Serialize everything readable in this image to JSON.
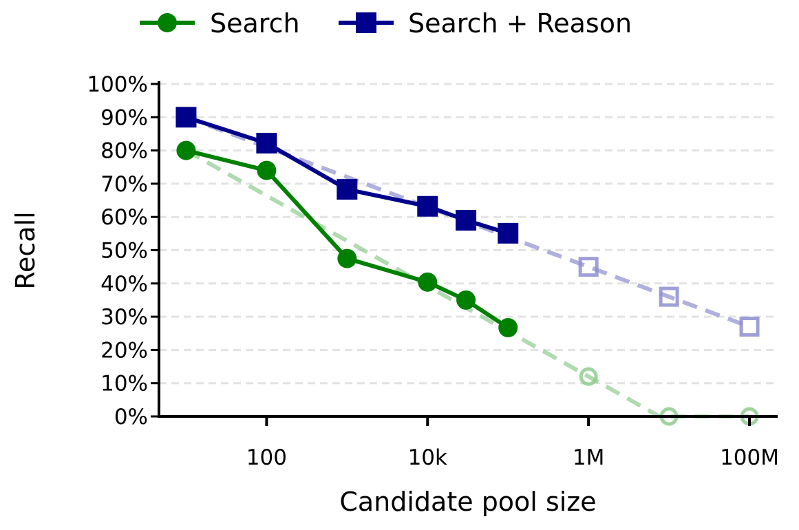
{
  "chart_data": {
    "type": "line",
    "title": "",
    "xlabel": "Candidate pool size",
    "ylabel": "Recall",
    "x_scale": "log",
    "xlim": [
      4.6,
      224000000
    ],
    "ylim": [
      0,
      100
    ],
    "x_ticks": [
      {
        "value": 100,
        "label": "100"
      },
      {
        "value": 10000,
        "label": "10k"
      },
      {
        "value": 1000000,
        "label": "1M"
      },
      {
        "value": 100000000,
        "label": "100M"
      }
    ],
    "y_ticks": [
      {
        "value": 0,
        "label": "0%"
      },
      {
        "value": 10,
        "label": "10%"
      },
      {
        "value": 20,
        "label": "20%"
      },
      {
        "value": 30,
        "label": "30%"
      },
      {
        "value": 40,
        "label": "40%"
      },
      {
        "value": 50,
        "label": "50%"
      },
      {
        "value": 60,
        "label": "60%"
      },
      {
        "value": 70,
        "label": "70%"
      },
      {
        "value": 80,
        "label": "80%"
      },
      {
        "value": 90,
        "label": "90%"
      },
      {
        "value": 100,
        "label": "100%"
      }
    ],
    "grid": "horizontal dashed",
    "legend_position": "top",
    "series": [
      {
        "name": "Search",
        "color": "#008000",
        "marker": "circle",
        "x": [
          10,
          100,
          1000,
          10000,
          30000,
          100000
        ],
        "y": [
          80,
          74,
          47.5,
          40.4,
          35,
          26.7
        ],
        "extrapolated": {
          "x": [
            1000000,
            10000000,
            100000000
          ],
          "y": [
            12,
            0,
            0
          ]
        }
      },
      {
        "name": "Search + Reason",
        "color": "#00008B",
        "marker": "square",
        "x": [
          10,
          100,
          1000,
          10000,
          30000,
          100000
        ],
        "y": [
          90,
          82.2,
          68.3,
          63.2,
          59,
          55.1
        ],
        "extrapolated": {
          "x": [
            1000000,
            10000000,
            100000000
          ],
          "y": [
            45,
            36,
            27
          ]
        }
      }
    ]
  }
}
